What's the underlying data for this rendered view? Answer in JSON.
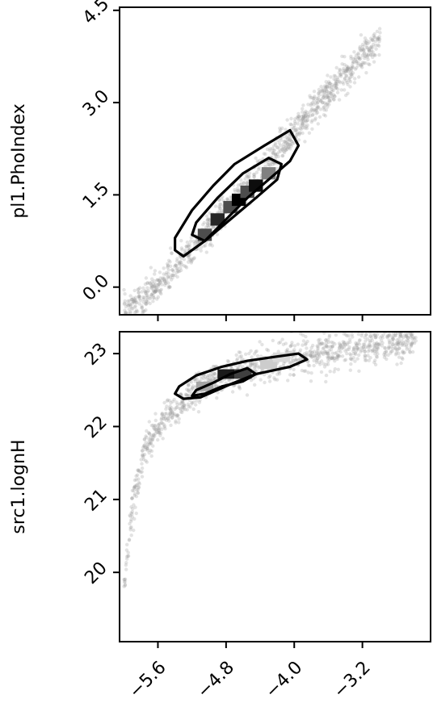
{
  "chart_data": [
    {
      "type": "scatter",
      "panel": "top",
      "xlabel": "",
      "ylabel": "pl1.PhoIndex",
      "xlim": [
        -6.05,
        -2.4
      ],
      "ylim": [
        -0.45,
        4.55
      ],
      "x_ticks": [
        -5.6,
        -4.8,
        -4.0,
        -3.2
      ],
      "x_tick_labels": [],
      "y_ticks": [
        0.0,
        1.5,
        3.0,
        4.5
      ],
      "y_tick_labels": [
        "0.0",
        "1.5",
        "3.0",
        "4.5"
      ],
      "grid": false,
      "sample_trend": [
        [
          -6.0,
          -0.4
        ],
        [
          -5.6,
          0.0
        ],
        [
          -5.2,
          0.6
        ],
        [
          -4.8,
          1.25
        ],
        [
          -4.4,
          1.85
        ],
        [
          -4.0,
          2.55
        ],
        [
          -3.6,
          3.15
        ],
        [
          -3.2,
          3.75
        ],
        [
          -2.9,
          4.2
        ]
      ],
      "density_cells": [
        [
          -5.05,
          0.85,
          0.7
        ],
        [
          -4.9,
          1.1,
          0.85
        ],
        [
          -4.75,
          1.3,
          0.7
        ],
        [
          -4.65,
          1.42,
          1.0
        ],
        [
          -4.55,
          1.55,
          0.7
        ],
        [
          -4.45,
          1.65,
          0.95
        ],
        [
          -4.3,
          1.85,
          0.5
        ]
      ],
      "contours": [
        [
          [
            -5.3,
            0.5
          ],
          [
            -5.05,
            0.75
          ],
          [
            -4.8,
            1.1
          ],
          [
            -4.55,
            1.45
          ],
          [
            -4.3,
            1.75
          ],
          [
            -4.05,
            2.05
          ],
          [
            -3.95,
            2.3
          ],
          [
            -4.05,
            2.55
          ],
          [
            -4.35,
            2.3
          ],
          [
            -4.7,
            2.0
          ],
          [
            -4.95,
            1.65
          ],
          [
            -5.2,
            1.25
          ],
          [
            -5.4,
            0.8
          ],
          [
            -5.4,
            0.6
          ],
          [
            -5.3,
            0.5
          ]
        ],
        [
          [
            -5.05,
            0.75
          ],
          [
            -4.75,
            1.1
          ],
          [
            -4.45,
            1.45
          ],
          [
            -4.2,
            1.75
          ],
          [
            -4.15,
            2.0
          ],
          [
            -4.3,
            2.1
          ],
          [
            -4.6,
            1.85
          ],
          [
            -4.9,
            1.45
          ],
          [
            -5.15,
            1.05
          ],
          [
            -5.2,
            0.85
          ],
          [
            -5.05,
            0.75
          ]
        ]
      ]
    },
    {
      "type": "scatter",
      "panel": "bottom",
      "xlabel": "",
      "ylabel": "src1.lognH",
      "xlim": [
        -6.05,
        -2.4
      ],
      "ylim": [
        19.05,
        23.3
      ],
      "x_ticks": [
        -5.6,
        -4.8,
        -4.0,
        -3.2
      ],
      "x_tick_labels": [
        "−5.6",
        "−4.8",
        "−4.0",
        "−3.2"
      ],
      "y_ticks": [
        20,
        21,
        22,
        23
      ],
      "y_tick_labels": [
        "20",
        "21",
        "22",
        "23"
      ],
      "grid": false,
      "sample_trend": [
        [
          -6.0,
          19.8
        ],
        [
          -5.9,
          20.9
        ],
        [
          -5.75,
          21.7
        ],
        [
          -5.5,
          22.15
        ],
        [
          -5.2,
          22.45
        ],
        [
          -4.8,
          22.7
        ],
        [
          -4.4,
          22.85
        ],
        [
          -4.0,
          22.93
        ],
        [
          -3.6,
          23.02
        ],
        [
          -3.2,
          23.08
        ],
        [
          -2.8,
          23.13
        ],
        [
          -2.5,
          23.17
        ]
      ],
      "density_cells": [
        [
          -5.05,
          22.55,
          0.35
        ],
        [
          -4.8,
          22.72,
          0.9
        ],
        [
          -4.6,
          22.72,
          0.75
        ],
        [
          -4.3,
          22.85,
          0.2
        ],
        [
          -4.15,
          22.95,
          0.15
        ]
      ],
      "contours": [
        [
          [
            -5.35,
            22.55
          ],
          [
            -5.15,
            22.7
          ],
          [
            -4.85,
            22.82
          ],
          [
            -4.55,
            22.9
          ],
          [
            -4.2,
            22.96
          ],
          [
            -3.95,
            23.0
          ],
          [
            -3.85,
            22.92
          ],
          [
            -4.05,
            22.82
          ],
          [
            -4.45,
            22.72
          ],
          [
            -4.75,
            22.58
          ],
          [
            -5.1,
            22.4
          ],
          [
            -5.3,
            22.38
          ],
          [
            -5.4,
            22.45
          ],
          [
            -5.35,
            22.55
          ]
        ],
        [
          [
            -5.15,
            22.5
          ],
          [
            -4.95,
            22.6
          ],
          [
            -4.75,
            22.72
          ],
          [
            -4.55,
            22.8
          ],
          [
            -4.45,
            22.72
          ],
          [
            -4.6,
            22.62
          ],
          [
            -4.85,
            22.55
          ],
          [
            -5.05,
            22.45
          ],
          [
            -5.2,
            22.42
          ],
          [
            -5.15,
            22.5
          ]
        ]
      ]
    }
  ]
}
